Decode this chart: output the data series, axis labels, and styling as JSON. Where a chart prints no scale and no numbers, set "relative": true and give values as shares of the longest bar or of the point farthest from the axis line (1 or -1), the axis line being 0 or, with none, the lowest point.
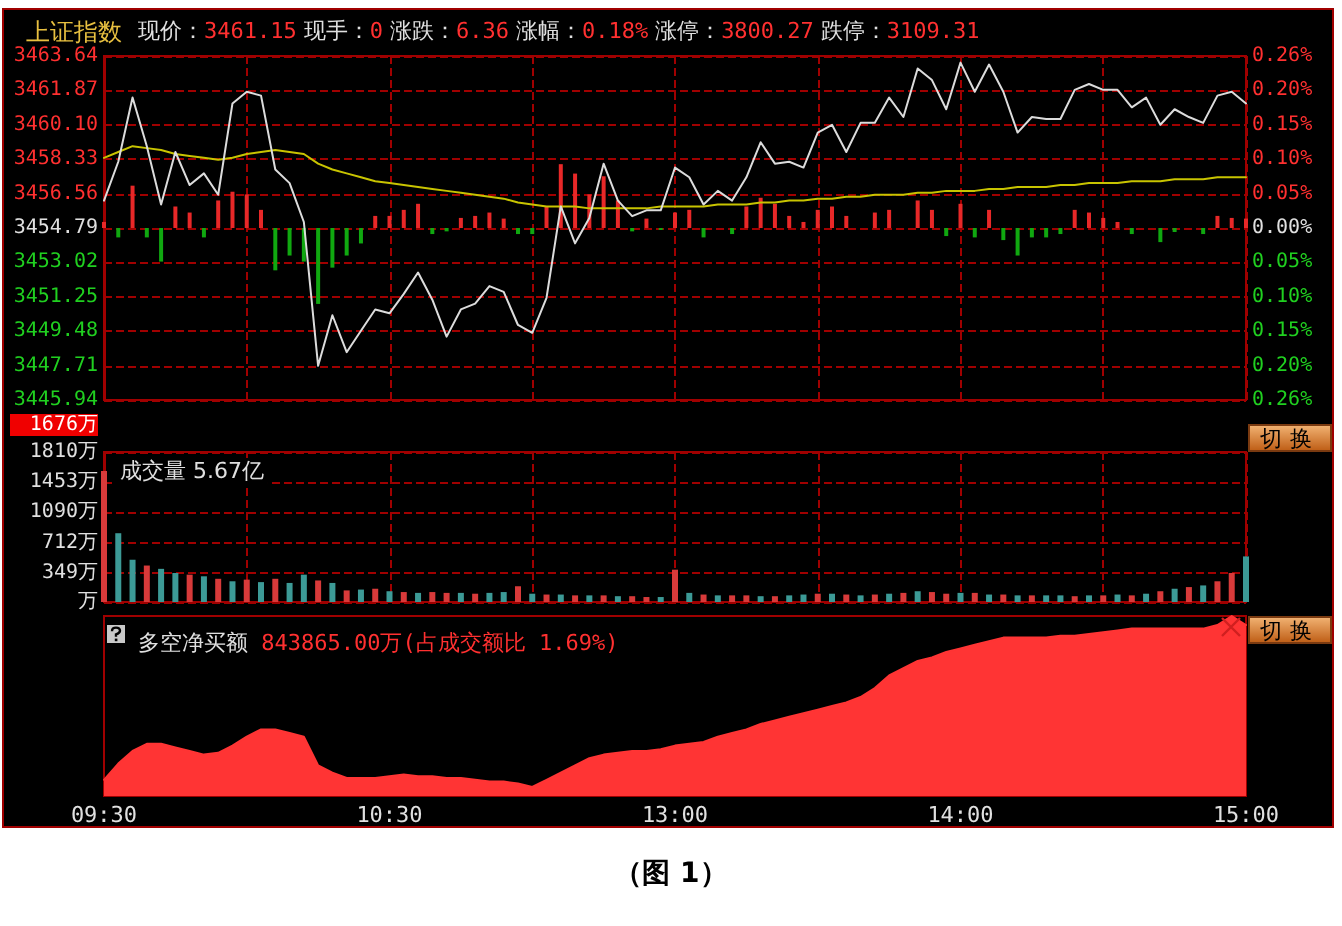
{
  "chart_data": [
    {
      "type": "line",
      "title": "上证指数",
      "subtitle": "现价：3461.15 现手：0 涨跌：6.36 涨幅：0.18% 涨停：3800.27 跌停：3109.31",
      "categories": [
        null,
        null,
        null,
        null,
        null,
        null,
        null,
        null,
        null,
        null,
        null,
        null,
        null,
        null,
        null,
        null,
        null,
        null,
        null,
        null,
        null,
        null,
        null,
        null,
        null,
        null,
        null,
        null,
        null,
        null,
        null,
        null,
        null,
        null,
        null,
        null,
        null,
        null,
        null,
        null,
        null,
        null,
        null,
        null,
        null,
        null,
        null,
        null,
        null,
        null,
        null,
        null,
        null,
        null,
        null,
        null,
        null,
        null,
        null,
        null,
        null,
        null,
        null,
        null,
        null,
        null,
        null,
        null,
        null,
        null,
        null,
        null,
        null,
        null,
        null,
        null,
        null,
        null,
        null,
        null,
        null
      ],
      "ylim": [
        3445.94,
        3463.64
      ],
      "yticks": [
        3445.94,
        3447.71,
        3449.48,
        3451.25,
        3453.02,
        3454.79,
        3456.56,
        3458.33,
        {
          "value": 3460.1,
          "label": "3460.10"
        },
        3461.87,
        3463.64
      ],
      "y2lim": [
        -0.256,
        0.256
      ],
      "y2ticks": [
        {
          "value": -0.256,
          "label": "0.26%"
        },
        {
          "value": -0.205,
          "label": "0.20%"
        },
        {
          "value": -0.154,
          "label": "0.15%"
        },
        {
          "value": -0.102,
          "label": "0.10%"
        },
        {
          "value": -0.051,
          "label": "0.05%"
        },
        {
          "value": 0,
          "label": "0.00%"
        },
        {
          "value": 0.051,
          "label": "0.05%"
        },
        {
          "value": 0.102,
          "label": "0.10%"
        },
        {
          "value": 0.154,
          "label": "0.15%"
        },
        {
          "value": 0.205,
          "label": "0.20%"
        },
        {
          "value": 0.256,
          "label": "0.26%"
        }
      ],
      "grid": true,
      "tick_labels": "y",
      "series": [
        {
          "type": "bar",
          "axis": "y2",
          "color": "#e82828",
          "values": [
            0.009,
            null,
            0.063,
            null,
            null,
            0.032,
            0.023,
            null,
            0.041,
            0.054,
            0.05,
            0.027,
            null,
            null,
            null,
            null,
            null,
            null,
            null,
            0.018,
            0.018,
            0.027,
            0.036,
            null,
            null,
            0.015,
            0.018,
            0.023,
            0.014,
            null,
            null,
            0.032,
            0.095,
            0.081,
            0.05,
            0.077,
            0.041,
            null,
            0.014,
            null,
            0.023,
            0.027,
            null,
            null,
            null,
            0.032,
            0.045,
            0.036,
            0.018,
            0.009,
            0.027,
            0.032,
            0.018,
            null,
            0.023,
            0.027,
            null,
            0.041,
            0.027,
            null,
            0.036,
            null,
            0.027,
            null,
            null,
            null,
            null,
            null,
            0.027,
            0.023,
            0.015,
            0.009,
            null,
            null,
            null,
            null,
            null,
            null,
            0.018,
            0.015,
            0.014
          ]
        },
        {
          "type": "bar",
          "axis": "y2",
          "color": "#10a810",
          "values": [
            null,
            -0.014,
            null,
            -0.014,
            -0.05,
            null,
            null,
            -0.014,
            null,
            null,
            null,
            null,
            -0.063,
            -0.041,
            -0.05,
            -0.113,
            -0.059,
            -0.041,
            -0.023,
            null,
            null,
            null,
            null,
            -0.009,
            -0.005,
            null,
            null,
            null,
            null,
            -0.009,
            -0.009,
            null,
            null,
            null,
            null,
            null,
            null,
            -0.005,
            null,
            -0.003,
            null,
            null,
            -0.014,
            null,
            -0.009,
            null,
            null,
            null,
            null,
            null,
            null,
            null,
            null,
            null,
            null,
            null,
            null,
            null,
            null,
            -0.012,
            null,
            -0.014,
            null,
            -0.018,
            -0.041,
            -0.014,
            -0.014,
            -0.009,
            null,
            null,
            null,
            null,
            -0.009,
            null,
            -0.021,
            -0.006,
            null,
            -0.009,
            null,
            null,
            null
          ]
        },
        {
          "color": "#c8c400",
          "values": [
            3458.4,
            3458.7,
            3459.0,
            3458.9,
            3458.8,
            3458.6,
            3458.5,
            3458.4,
            3458.3,
            3458.4,
            3458.6,
            3458.7,
            3458.8,
            3458.7,
            3458.6,
            3458.1,
            3457.8,
            3457.6,
            3457.4,
            3457.2,
            3457.1,
            3457.0,
            3456.9,
            3456.8,
            3456.7,
            3456.6,
            3456.5,
            3456.4,
            3456.3,
            3456.1,
            3456.0,
            3455.9,
            3455.9,
            3455.9,
            3455.8,
            3455.8,
            3455.8,
            3455.8,
            3455.8,
            3455.9,
            3455.9,
            3455.9,
            3455.9,
            3456.0,
            3456.0,
            3456.0,
            3456.1,
            3456.1,
            3456.2,
            3456.2,
            3456.3,
            3456.3,
            3456.4,
            3456.4,
            3456.5,
            3456.5,
            3456.5,
            3456.6,
            3456.6,
            3456.7,
            3456.7,
            3456.7,
            3456.8,
            3456.8,
            3456.9,
            3456.9,
            3456.9,
            3457.0,
            3457.0,
            3457.1,
            3457.1,
            3457.1,
            3457.2,
            3457.2,
            3457.2,
            3457.3,
            3457.3,
            3457.3,
            3457.4,
            3457.4,
            3457.4
          ]
        },
        {
          "color": "#dcdcdc",
          "values": [
            3456.2,
            3458.2,
            3461.5,
            3459.0,
            3456.0,
            3458.7,
            3457.0,
            3457.6,
            3456.5,
            3461.2,
            3461.8,
            3461.6,
            3457.8,
            3457.1,
            3455.1,
            3447.7,
            3450.3,
            3448.4,
            3449.5,
            3450.6,
            3450.4,
            3451.4,
            3452.5,
            3451.1,
            3449.2,
            3450.6,
            3450.9,
            3451.8,
            3451.5,
            3449.8,
            3449.4,
            3451.2,
            3455.9,
            3454.0,
            3455.3,
            3458.1,
            3456.2,
            3455.4,
            3455.7,
            3455.7,
            3457.9,
            3457.4,
            3456.0,
            3456.7,
            3456.2,
            3457.4,
            3459.2,
            3458.1,
            3458.2,
            3457.9,
            3459.7,
            3460.1,
            3458.7,
            3460.2,
            3460.2,
            3461.5,
            3460.5,
            3463.0,
            3462.4,
            3460.9,
            3463.3,
            3461.8,
            3463.2,
            3461.8,
            3459.7,
            3460.5,
            3460.4,
            3460.4,
            3461.9,
            3462.2,
            3461.9,
            3461.9,
            3461.0,
            3461.5,
            3460.1,
            3460.9,
            3460.5,
            3460.2,
            3461.6,
            3461.8,
            3461.2
          ]
        }
      ]
    },
    {
      "type": "bar",
      "title": "成交量 5.67亿",
      "annotations": [
        "1676万",
        "切换"
      ],
      "categories": [
        null,
        null,
        null,
        null,
        null,
        null,
        null,
        null,
        null,
        null,
        null,
        null,
        null,
        null,
        null,
        null,
        null,
        null,
        null,
        null,
        null,
        null,
        null,
        null,
        null,
        null,
        null,
        null,
        null,
        null,
        null,
        null,
        null,
        null,
        null,
        null,
        null,
        null,
        null,
        null,
        null,
        null,
        null,
        null,
        null,
        null,
        null,
        null,
        null,
        null,
        null,
        null,
        null,
        null,
        null,
        null,
        null,
        null,
        null,
        null,
        null,
        null,
        null,
        null,
        null,
        null,
        null,
        null,
        null,
        null,
        null,
        null,
        null,
        null,
        null,
        null,
        null,
        null,
        null,
        null,
        null
      ],
      "ylim": [
        0,
        1810
      ],
      "yticks": [
        {
          "value": 0,
          "label": "万"
        },
        {
          "value": 349,
          "label": "349万"
        },
        {
          "value": 712,
          "label": "712万"
        },
        {
          "value": 1090,
          "label": "1090万"
        },
        {
          "value": 1453,
          "label": "1453万"
        },
        {
          "value": 1810,
          "label": "1810万"
        }
      ],
      "grid": true,
      "tick_labels": "y",
      "values": [
        1580,
        830,
        510,
        440,
        400,
        350,
        330,
        310,
        280,
        250,
        270,
        240,
        280,
        230,
        330,
        260,
        230,
        140,
        150,
        160,
        130,
        120,
        110,
        120,
        110,
        110,
        100,
        110,
        120,
        190,
        100,
        90,
        90,
        80,
        80,
        80,
        70,
        70,
        60,
        60,
        390,
        110,
        90,
        80,
        80,
        80,
        70,
        70,
        80,
        90,
        100,
        100,
        90,
        80,
        90,
        100,
        110,
        130,
        120,
        100,
        110,
        110,
        90,
        90,
        80,
        80,
        80,
        80,
        70,
        80,
        80,
        90,
        80,
        100,
        130,
        160,
        180,
        200,
        250,
        350,
        550
      ],
      "colors": [
        "#d83a3a",
        "#3c9a96",
        "#3c9a96",
        "#d83a3a",
        "#3c9a96",
        "#3c9a96",
        "#d83a3a",
        "#3c9a96",
        "#d83a3a",
        "#3c9a96",
        "#d83a3a",
        "#3c9a96",
        "#d83a3a",
        "#3c9a96",
        "#3c9a96",
        "#d83a3a",
        "#3c9a96",
        "#d83a3a",
        "#3c9a96",
        "#d83a3a",
        "#3c9a96",
        "#d83a3a",
        "#3c9a96",
        "#d83a3a",
        "#d83a3a",
        "#3c9a96",
        "#d83a3a",
        "#3c9a96",
        "#3c9a96",
        "#d83a3a",
        "#3c9a96",
        "#d83a3a",
        "#3c9a96",
        "#d83a3a",
        "#3c9a96",
        "#d83a3a",
        "#3c9a96",
        "#d83a3a",
        "#d83a3a",
        "#3c9a96",
        "#d83a3a",
        "#3c9a96",
        "#d83a3a",
        "#3c9a96",
        "#d83a3a",
        "#d83a3a",
        "#3c9a96",
        "#d83a3a",
        "#3c9a96",
        "#3c9a96",
        "#d83a3a",
        "#3c9a96",
        "#d83a3a",
        "#3c9a96",
        "#d83a3a",
        "#3c9a96",
        "#d83a3a",
        "#3c9a96",
        "#d83a3a",
        "#d83a3a",
        "#3c9a96",
        "#d83a3a",
        "#3c9a96",
        "#d83a3a",
        "#3c9a96",
        "#d83a3a",
        "#3c9a96",
        "#3c9a96",
        "#d83a3a",
        "#3c9a96",
        "#d83a3a",
        "#3c9a96",
        "#d83a3a",
        "#3c9a96",
        "#d83a3a",
        "#3c9a96",
        "#d83a3a",
        "#3c9a96",
        "#d83a3a",
        "#d83a3a",
        "#3c9a96"
      ]
    },
    {
      "type": "area",
      "relative": true,
      "title": "多空净买额",
      "subtitle": "843865.00万(占成交额比 1.69%)",
      "annotations": [
        "切换",
        "（图 1）"
      ],
      "categories": [
        "09:30",
        null,
        null,
        null,
        null,
        null,
        null,
        null,
        null,
        null,
        null,
        null,
        null,
        null,
        null,
        null,
        null,
        null,
        null,
        null,
        "10:30",
        null,
        null,
        null,
        null,
        null,
        null,
        null,
        null,
        null,
        null,
        null,
        null,
        null,
        null,
        null,
        null,
        null,
        null,
        null,
        "13:00",
        null,
        null,
        null,
        null,
        null,
        null,
        null,
        null,
        null,
        null,
        null,
        null,
        null,
        null,
        null,
        null,
        null,
        null,
        null,
        "14:00",
        null,
        null,
        null,
        null,
        null,
        null,
        null,
        null,
        null,
        null,
        null,
        null,
        null,
        null,
        null,
        null,
        null,
        null,
        null,
        "15:00"
      ],
      "tick_labels": "x",
      "color": "#ff3434",
      "values": [
        0.09,
        0.18,
        0.25,
        0.29,
        0.29,
        0.27,
        0.25,
        0.23,
        0.24,
        0.28,
        0.33,
        0.37,
        0.37,
        0.35,
        0.33,
        0.17,
        0.13,
        0.1,
        0.1,
        0.1,
        0.11,
        0.12,
        0.11,
        0.11,
        0.1,
        0.1,
        0.09,
        0.08,
        0.08,
        0.07,
        0.05,
        0.09,
        0.13,
        0.17,
        0.21,
        0.23,
        0.24,
        0.25,
        0.25,
        0.26,
        0.28,
        0.29,
        0.3,
        0.33,
        0.35,
        0.37,
        0.4,
        0.42,
        0.44,
        0.46,
        0.48,
        0.5,
        0.52,
        0.55,
        0.6,
        0.67,
        0.71,
        0.75,
        0.77,
        0.8,
        0.82,
        0.84,
        0.86,
        0.88,
        0.88,
        0.88,
        0.88,
        0.89,
        0.89,
        0.9,
        0.91,
        0.92,
        0.93,
        0.93,
        0.93,
        0.93,
        0.93,
        0.93,
        0.95,
        1.0,
        0.95
      ]
    }
  ]
}
